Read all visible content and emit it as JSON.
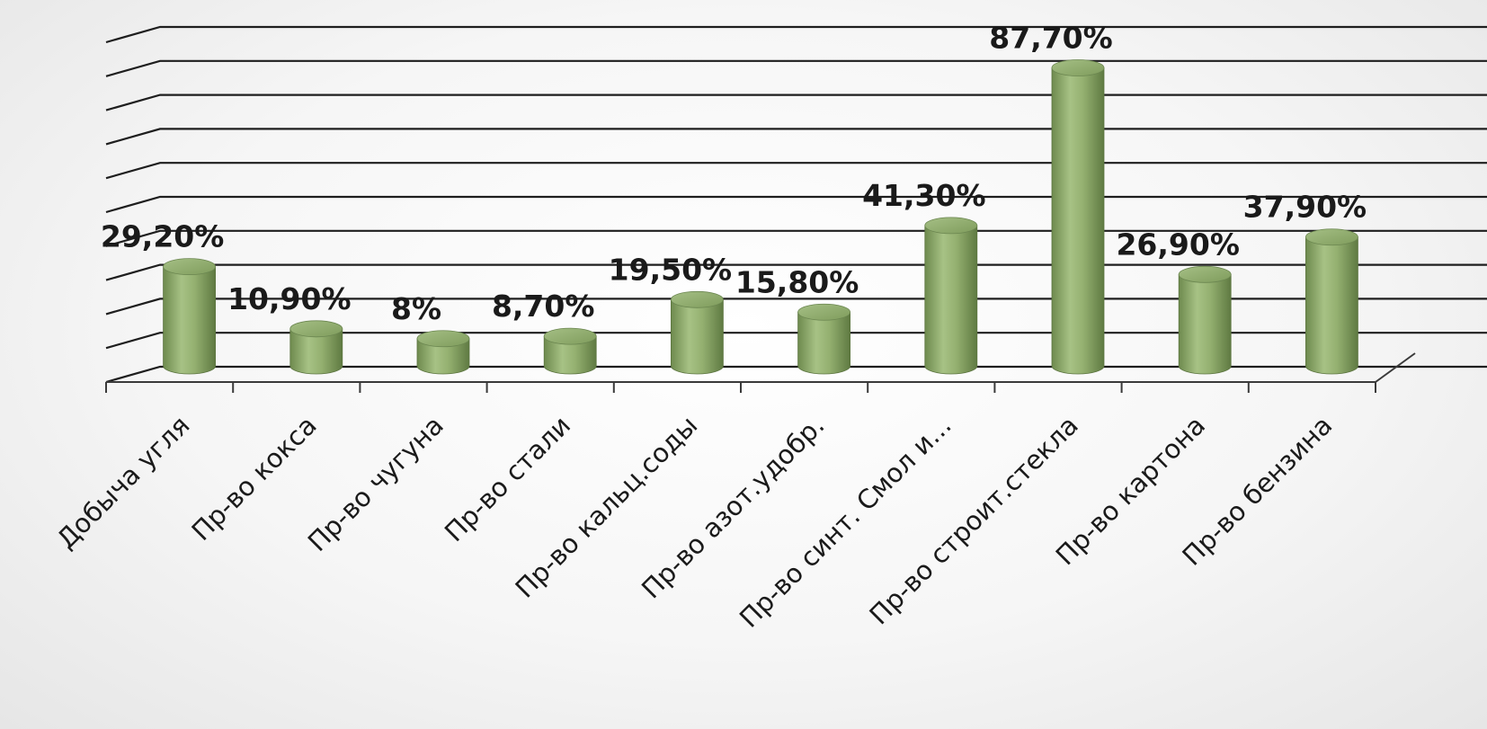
{
  "chart_data": {
    "type": "bar",
    "style": "3d-cylinder",
    "title": "",
    "xlabel": "",
    "ylabel": "",
    "ylim": [
      0,
      100
    ],
    "grid": true,
    "legend": "none",
    "bar_color": "#8fac6b",
    "categories": [
      "Добыча угля",
      "Пр-во кокса",
      "Пр-во чугуна",
      "Пр-во стали",
      "Пр-во кальц.соды",
      "Пр-во азот.удобр.",
      "Пр-во синт. Смол и...",
      "Пр-во строит.стекла",
      "Пр-во картона",
      "Пр-во бензина"
    ],
    "values": [
      29.2,
      10.9,
      8,
      8.7,
      19.5,
      15.8,
      41.3,
      87.7,
      26.9,
      37.9
    ],
    "data_labels": [
      "29,20%",
      "10,90%",
      "8%",
      "8,70%",
      "19,50%",
      "15,80%",
      "41,30%",
      "87,70%",
      "26,90%",
      "37,90%"
    ]
  }
}
